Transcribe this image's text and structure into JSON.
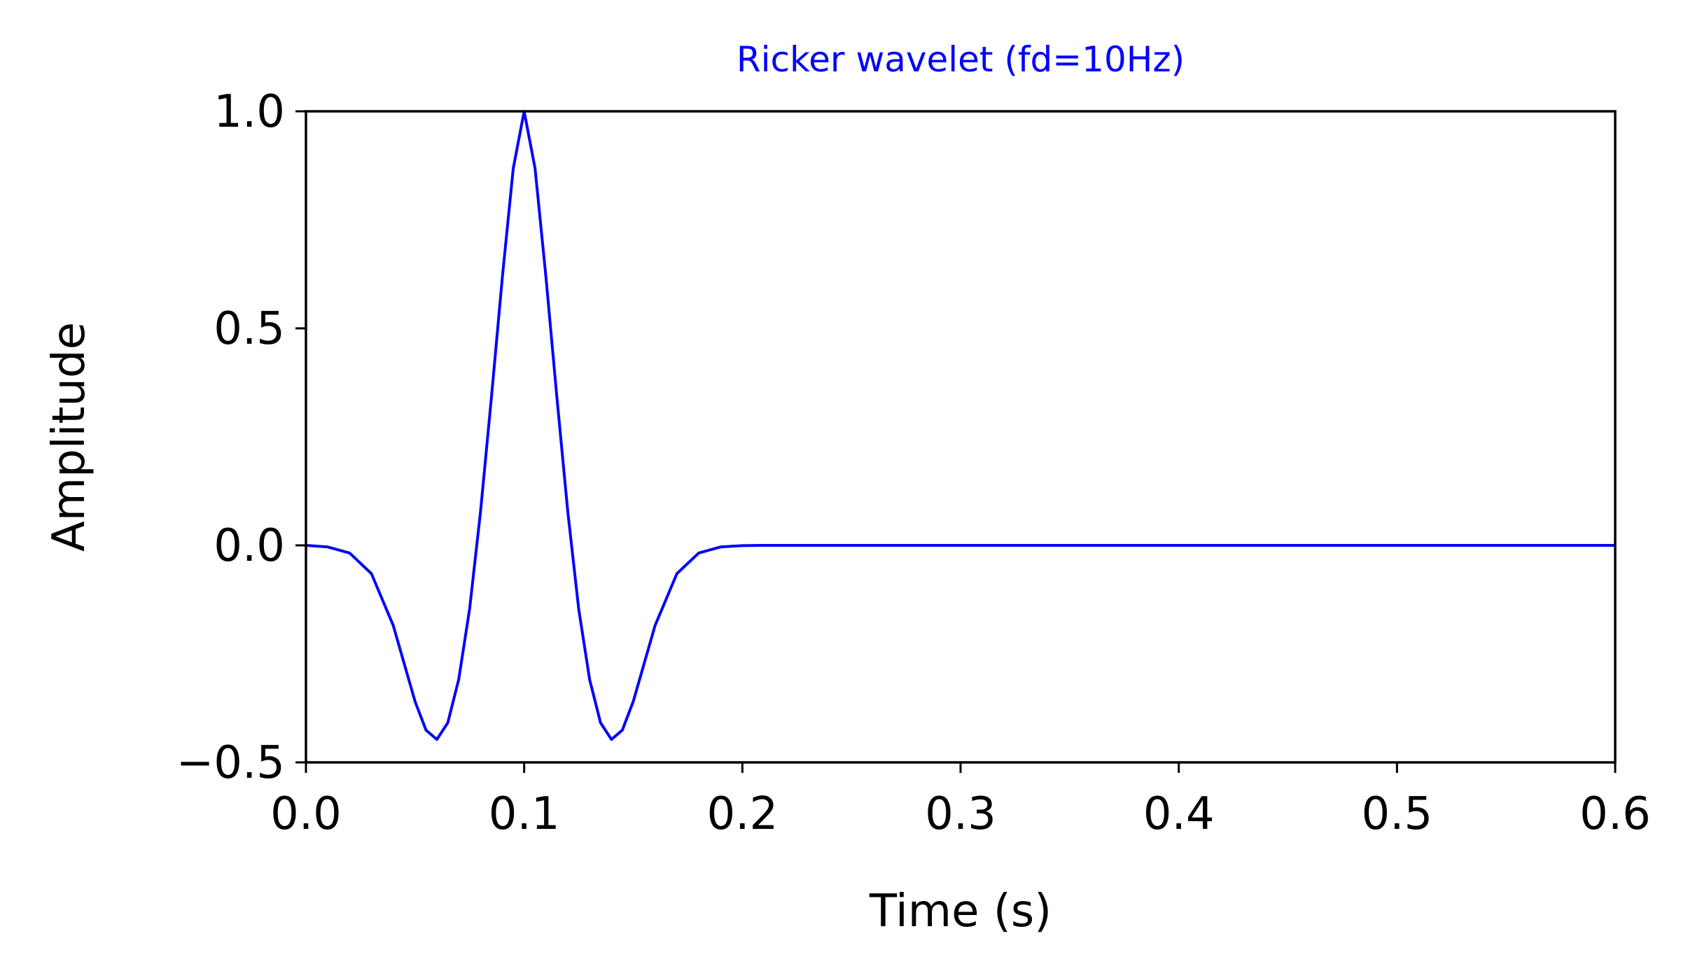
{
  "chart_data": {
    "type": "line",
    "title": "Ricker wavelet (fd=10Hz)",
    "xlabel": "Time (s)",
    "ylabel": "Amplitude",
    "xlim": [
      0.0,
      0.6
    ],
    "ylim": [
      -0.5,
      1.0
    ],
    "xticks": [
      0.0,
      0.1,
      0.2,
      0.3,
      0.4,
      0.5,
      0.6
    ],
    "xtick_labels": [
      "0.0",
      "0.1",
      "0.2",
      "0.3",
      "0.4",
      "0.5",
      "0.6"
    ],
    "yticks": [
      -0.5,
      0.0,
      0.5,
      1.0
    ],
    "ytick_labels": [
      "−0.5",
      "0.0",
      "0.5",
      "1.0"
    ],
    "grid": false,
    "colors": {
      "line": "#0000ff",
      "title": "#0000ff",
      "axes": "#000000"
    },
    "series": [
      {
        "values": [
          [
            0.0,
            0.0
          ],
          [
            0.01,
            -0.0037
          ],
          [
            0.02,
            -0.0176
          ],
          [
            0.03,
            -0.0651
          ],
          [
            0.04,
            -0.1845
          ],
          [
            0.05,
            -0.3596
          ],
          [
            0.055,
            -0.4256
          ],
          [
            0.06,
            -0.4472
          ],
          [
            0.065,
            -0.4087
          ],
          [
            0.07,
            -0.309
          ],
          [
            0.075,
            -0.1467
          ],
          [
            0.08,
            0.0774
          ],
          [
            0.085,
            0.341
          ],
          [
            0.09,
            0.6173
          ],
          [
            0.095,
            0.8683
          ],
          [
            0.1,
            1.0
          ],
          [
            0.105,
            0.8683
          ],
          [
            0.11,
            0.6173
          ],
          [
            0.115,
            0.341
          ],
          [
            0.12,
            0.0774
          ],
          [
            0.125,
            -0.1467
          ],
          [
            0.13,
            -0.309
          ],
          [
            0.135,
            -0.4087
          ],
          [
            0.14,
            -0.4472
          ],
          [
            0.145,
            -0.4256
          ],
          [
            0.15,
            -0.3596
          ],
          [
            0.16,
            -0.1845
          ],
          [
            0.17,
            -0.0651
          ],
          [
            0.18,
            -0.0176
          ],
          [
            0.19,
            -0.0037
          ],
          [
            0.2,
            -0.0006
          ],
          [
            0.21,
            0.0
          ],
          [
            0.3,
            0.0
          ],
          [
            0.4,
            0.0
          ],
          [
            0.5,
            0.0
          ],
          [
            0.6,
            0.0
          ]
        ]
      }
    ]
  }
}
